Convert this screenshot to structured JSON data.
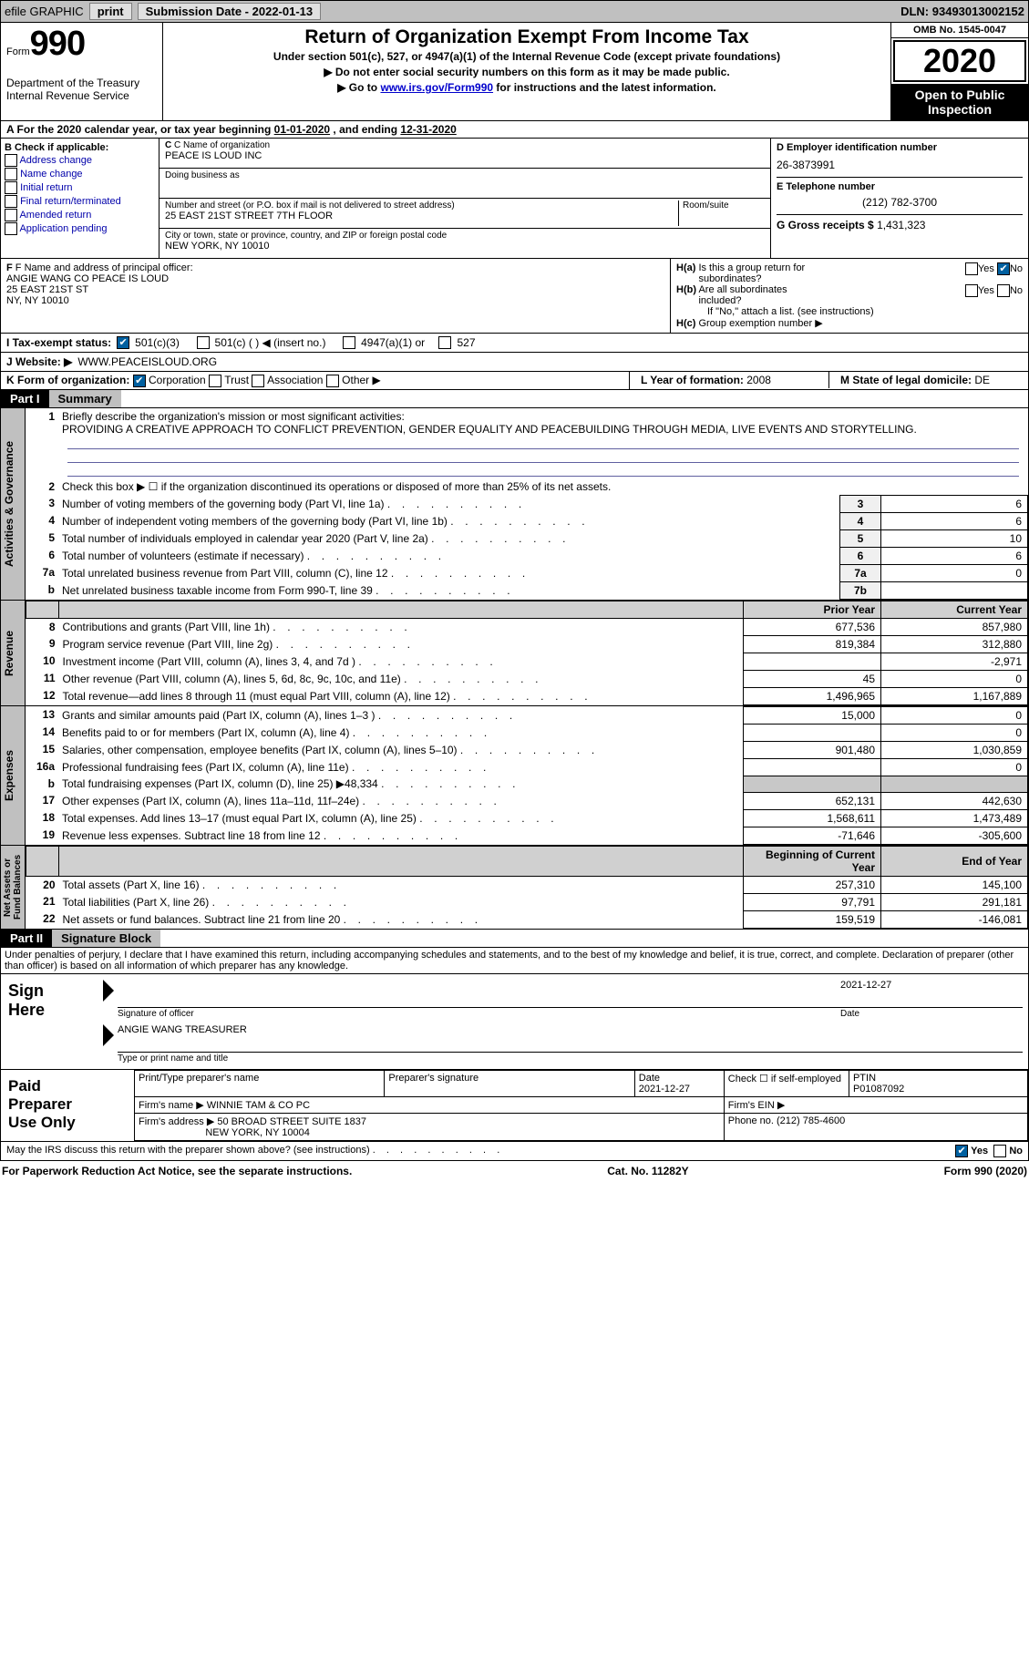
{
  "header": {
    "efile": "efile GRAPHIC",
    "print": "print",
    "sub_label": "Submission Date - ",
    "sub_date": "2022-01-13",
    "dln_label": "DLN: ",
    "dln": "93493013002152"
  },
  "form": {
    "form_word": "Form",
    "num": "990",
    "dept": "Department of the Treasury\nInternal Revenue Service",
    "title": "Return of Organization Exempt From Income Tax",
    "sub1": "Under section 501(c), 527, or 4947(a)(1) of the Internal Revenue Code (except private foundations)",
    "sub2": "▶ Do not enter social security numbers on this form as it may be made public.",
    "sub3_pre": "▶ Go to ",
    "sub3_link": "www.irs.gov/Form990",
    "sub3_post": " for instructions and the latest information.",
    "omb": "OMB No. 1545-0047",
    "year": "2020",
    "open": "Open to Public\nInspection"
  },
  "period": {
    "label_a": "A For the 2020 calendar year, or tax year beginning ",
    "begin": "01-01-2020",
    "mid": " , and ending ",
    "end": "12-31-2020"
  },
  "checkcol": {
    "head": "B Check if applicable:",
    "opts": [
      "Address change",
      "Name change",
      "Initial return",
      "Final return/terminated",
      "Amended return",
      "Application pending"
    ]
  },
  "namecol": {
    "c_label": "C Name of organization",
    "org": "PEACE IS LOUD INC",
    "dba_label": "Doing business as",
    "dba": "",
    "street_label": "Number and street (or P.O. box if mail is not delivered to street address)",
    "room_label": "Room/suite",
    "street": "25 EAST 21ST STREET 7TH FLOOR",
    "city_label": "City or town, state or province, country, and ZIP or foreign postal code",
    "city": "NEW YORK, NY  10010"
  },
  "eincol": {
    "d_label": "D Employer identification number",
    "ein": "26-3873991",
    "e_label": "E Telephone number",
    "phone": "(212) 782-3700",
    "g_label": "G Gross receipts $ ",
    "gross": "1,431,323"
  },
  "f": {
    "label": "F Name and address of principal officer:",
    "name": "ANGIE WANG CO PEACE IS LOUD",
    "addr1": "25 EAST 21ST ST",
    "addr2": "NY, NY  10010"
  },
  "h": {
    "a_label": "H(a)  Is this a group return for subordinates?",
    "a_yes": "Yes",
    "a_no": "No",
    "b_label": "H(b)  Are all subordinates included?",
    "b_yes": "Yes",
    "b_no": "No",
    "b_note": "If \"No,\" attach a list. (see instructions)",
    "c_label": "H(c)  Group exemption number ▶"
  },
  "i": {
    "label": "I    Tax-exempt status:",
    "o1": "501(c)(3)",
    "o2": "501(c) (   ) ◀ (insert no.)",
    "o3": "4947(a)(1) or",
    "o4": "527"
  },
  "j": {
    "label": "J   Website: ▶ ",
    "url": "WWW.PEACEISLOUD.ORG"
  },
  "k": {
    "label": "K Form of organization:",
    "o1": "Corporation",
    "o2": "Trust",
    "o3": "Association",
    "o4": "Other ▶"
  },
  "lm": {
    "l_label": "L Year of formation: ",
    "l_val": "2008",
    "m_label": "M State of legal domicile: ",
    "m_val": "DE"
  },
  "part1": {
    "tag": "Part I",
    "title": "Summary"
  },
  "summary": {
    "line1_label": "Briefly describe the organization's mission or most significant activities:",
    "mission": "PROVIDING A CREATIVE APPROACH TO CONFLICT PREVENTION, GENDER EQUALITY AND PEACEBUILDING THROUGH MEDIA, LIVE EVENTS AND STORYTELLING.",
    "line2": "Check this box ▶ ☐  if the organization discontinued its operations or disposed of more than 25% of its net assets.",
    "rows_gov": [
      {
        "n": "3",
        "d": "Number of voting members of the governing body (Part VI, line 1a)",
        "b": "3",
        "v": "6"
      },
      {
        "n": "4",
        "d": "Number of independent voting members of the governing body (Part VI, line 1b)",
        "b": "4",
        "v": "6"
      },
      {
        "n": "5",
        "d": "Total number of individuals employed in calendar year 2020 (Part V, line 2a)",
        "b": "5",
        "v": "10"
      },
      {
        "n": "6",
        "d": "Total number of volunteers (estimate if necessary)",
        "b": "6",
        "v": "6"
      },
      {
        "n": "7a",
        "d": "Total unrelated business revenue from Part VIII, column (C), line 12",
        "b": "7a",
        "v": "0"
      },
      {
        "n": "b",
        "d": "Net unrelated business taxable income from Form 990-T, line 39",
        "b": "7b",
        "v": ""
      }
    ],
    "col_prior": "Prior Year",
    "col_curr": "Current Year",
    "rows_rev": [
      {
        "n": "8",
        "d": "Contributions and grants (Part VIII, line 1h)",
        "p": "677,536",
        "c": "857,980"
      },
      {
        "n": "9",
        "d": "Program service revenue (Part VIII, line 2g)",
        "p": "819,384",
        "c": "312,880"
      },
      {
        "n": "10",
        "d": "Investment income (Part VIII, column (A), lines 3, 4, and 7d )",
        "p": "",
        "c": "-2,971"
      },
      {
        "n": "11",
        "d": "Other revenue (Part VIII, column (A), lines 5, 6d, 8c, 9c, 10c, and 11e)",
        "p": "45",
        "c": "0"
      },
      {
        "n": "12",
        "d": "Total revenue—add lines 8 through 11 (must equal Part VIII, column (A), line 12)",
        "p": "1,496,965",
        "c": "1,167,889"
      }
    ],
    "rows_exp": [
      {
        "n": "13",
        "d": "Grants and similar amounts paid (Part IX, column (A), lines 1–3 )",
        "p": "15,000",
        "c": "0"
      },
      {
        "n": "14",
        "d": "Benefits paid to or for members (Part IX, column (A), line 4)",
        "p": "",
        "c": "0"
      },
      {
        "n": "15",
        "d": "Salaries, other compensation, employee benefits (Part IX, column (A), lines 5–10)",
        "p": "901,480",
        "c": "1,030,859"
      },
      {
        "n": "16a",
        "d": "Professional fundraising fees (Part IX, column (A), line 11e)",
        "p": "",
        "c": "0"
      },
      {
        "n": "b",
        "d": "Total fundraising expenses (Part IX, column (D), line 25) ▶48,334",
        "p": "SHADE",
        "c": "SHADE"
      },
      {
        "n": "17",
        "d": "Other expenses (Part IX, column (A), lines 11a–11d, 11f–24e)",
        "p": "652,131",
        "c": "442,630"
      },
      {
        "n": "18",
        "d": "Total expenses. Add lines 13–17 (must equal Part IX, column (A), line 25)",
        "p": "1,568,611",
        "c": "1,473,489"
      },
      {
        "n": "19",
        "d": "Revenue less expenses. Subtract line 18 from line 12",
        "p": "-71,646",
        "c": "-305,600"
      }
    ],
    "col_begin": "Beginning of Current Year",
    "col_end": "End of Year",
    "rows_net": [
      {
        "n": "20",
        "d": "Total assets (Part X, line 16)",
        "p": "257,310",
        "c": "145,100"
      },
      {
        "n": "21",
        "d": "Total liabilities (Part X, line 26)",
        "p": "97,791",
        "c": "291,181"
      },
      {
        "n": "22",
        "d": "Net assets or fund balances. Subtract line 21 from line 20",
        "p": "159,519",
        "c": "-146,081"
      }
    ]
  },
  "vtabs": {
    "gov": "Activities & Governance",
    "rev": "Revenue",
    "exp": "Expenses",
    "net": "Net Assets or\nFund Balances"
  },
  "part2": {
    "tag": "Part II",
    "title": "Signature Block"
  },
  "penalties": "Under penalties of perjury, I declare that I have examined this return, including accompanying schedules and statements, and to the best of my knowledge and belief, it is true, correct, and complete. Declaration of preparer (other than officer) is based on all information of which preparer has any knowledge.",
  "sign": {
    "here": "Sign\nHere",
    "sig_label": "Signature of officer",
    "date_label": "Date",
    "date": "2021-12-27",
    "name": "ANGIE WANG TREASURER",
    "name_label": "Type or print name and title"
  },
  "paid": {
    "title": "Paid\nPreparer\nUse Only",
    "h1": "Print/Type preparer's name",
    "h2": "Preparer's signature",
    "h3": "Date",
    "h3v": "2021-12-27",
    "h4": "Check ☐ if self-employed",
    "h5": "PTIN",
    "h5v": "P01087092",
    "firm_label": "Firm's name    ▶",
    "firm": "WINNIE TAM & CO PC",
    "ein_label": "Firm's EIN ▶",
    "addr_label": "Firm's address ▶",
    "addr1": "50 BROAD STREET SUITE 1837",
    "addr2": "NEW YORK, NY  10004",
    "phone_label": "Phone no. ",
    "phone": "(212) 785-4600"
  },
  "discuss": {
    "q": "May the IRS discuss this return with the preparer shown above? (see instructions)",
    "yes": "Yes",
    "no": "No"
  },
  "footer": {
    "left": "For Paperwork Reduction Act Notice, see the separate instructions.",
    "mid": "Cat. No. 11282Y",
    "right": "Form 990 (2020)"
  }
}
